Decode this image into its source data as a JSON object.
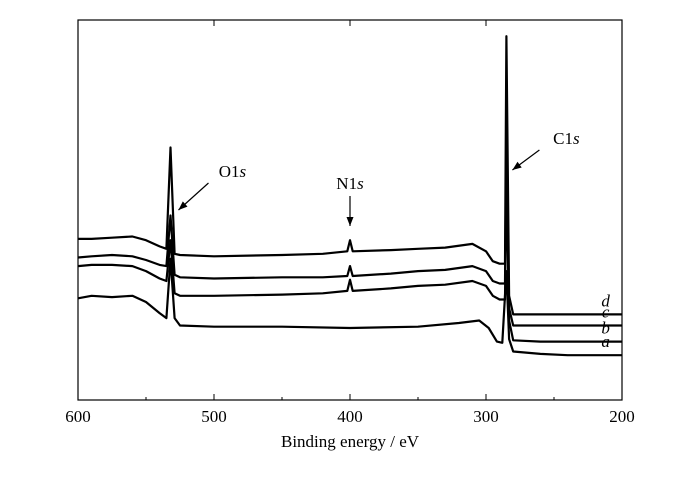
{
  "chart_data": {
    "type": "line",
    "title": "",
    "xlabel": "Binding energy / eV",
    "ylabel": "",
    "xlim": [
      600,
      200
    ],
    "x_reversed": true,
    "x_ticks": [
      "600",
      "500",
      "400",
      "300",
      "200"
    ],
    "y_ticks_labeled": false,
    "grid": false,
    "legend": "none",
    "series": [
      {
        "name": "a",
        "points": [
          [
            600,
            0.58
          ],
          [
            590,
            0.6
          ],
          [
            575,
            0.59
          ],
          [
            560,
            0.6
          ],
          [
            550,
            0.55
          ],
          [
            540,
            0.46
          ],
          [
            535,
            0.42
          ],
          [
            532,
            0.9
          ],
          [
            529,
            0.42
          ],
          [
            525,
            0.36
          ],
          [
            500,
            0.35
          ],
          [
            450,
            0.35
          ],
          [
            400,
            0.34
          ],
          [
            350,
            0.35
          ],
          [
            320,
            0.38
          ],
          [
            305,
            0.4
          ],
          [
            298,
            0.34
          ],
          [
            292,
            0.23
          ],
          [
            288,
            0.22
          ],
          [
            285,
            0.8
          ],
          [
            283,
            0.25
          ],
          [
            280,
            0.15
          ],
          [
            260,
            0.13
          ],
          [
            240,
            0.12
          ],
          [
            200,
            0.12
          ]
        ]
      },
      {
        "name": "b",
        "points": [
          [
            600,
            0.84
          ],
          [
            590,
            0.85
          ],
          [
            575,
            0.85
          ],
          [
            560,
            0.84
          ],
          [
            550,
            0.8
          ],
          [
            540,
            0.74
          ],
          [
            535,
            0.72
          ],
          [
            532,
            1.05
          ],
          [
            529,
            0.62
          ],
          [
            525,
            0.6
          ],
          [
            500,
            0.6
          ],
          [
            450,
            0.61
          ],
          [
            420,
            0.62
          ],
          [
            402,
            0.64
          ],
          [
            400,
            0.73
          ],
          [
            398,
            0.64
          ],
          [
            370,
            0.66
          ],
          [
            350,
            0.68
          ],
          [
            330,
            0.69
          ],
          [
            310,
            0.72
          ],
          [
            300,
            0.68
          ],
          [
            295,
            0.6
          ],
          [
            290,
            0.57
          ],
          [
            286,
            0.57
          ],
          [
            285,
            1.55
          ],
          [
            283,
            0.4
          ],
          [
            280,
            0.24
          ],
          [
            260,
            0.23
          ],
          [
            200,
            0.23
          ]
        ]
      },
      {
        "name": "c",
        "points": [
          [
            600,
            0.91
          ],
          [
            590,
            0.92
          ],
          [
            575,
            0.93
          ],
          [
            560,
            0.92
          ],
          [
            550,
            0.89
          ],
          [
            540,
            0.85
          ],
          [
            535,
            0.84
          ],
          [
            532,
            1.25
          ],
          [
            529,
            0.77
          ],
          [
            525,
            0.75
          ],
          [
            500,
            0.74
          ],
          [
            450,
            0.75
          ],
          [
            420,
            0.75
          ],
          [
            402,
            0.76
          ],
          [
            400,
            0.84
          ],
          [
            398,
            0.76
          ],
          [
            370,
            0.78
          ],
          [
            350,
            0.8
          ],
          [
            330,
            0.81
          ],
          [
            310,
            0.84
          ],
          [
            300,
            0.8
          ],
          [
            295,
            0.72
          ],
          [
            290,
            0.7
          ],
          [
            286,
            0.7
          ],
          [
            285,
            2.0
          ],
          [
            283,
            0.5
          ],
          [
            280,
            0.36
          ],
          [
            260,
            0.36
          ],
          [
            200,
            0.36
          ]
        ]
      },
      {
        "name": "d",
        "points": [
          [
            600,
            1.06
          ],
          [
            590,
            1.06
          ],
          [
            575,
            1.07
          ],
          [
            560,
            1.08
          ],
          [
            550,
            1.05
          ],
          [
            540,
            1.0
          ],
          [
            535,
            0.98
          ],
          [
            532,
            1.8
          ],
          [
            529,
            0.94
          ],
          [
            525,
            0.93
          ],
          [
            500,
            0.92
          ],
          [
            450,
            0.93
          ],
          [
            420,
            0.94
          ],
          [
            402,
            0.96
          ],
          [
            400,
            1.05
          ],
          [
            398,
            0.96
          ],
          [
            370,
            0.97
          ],
          [
            350,
            0.98
          ],
          [
            330,
            0.99
          ],
          [
            310,
            1.02
          ],
          [
            300,
            0.96
          ],
          [
            295,
            0.88
          ],
          [
            290,
            0.86
          ],
          [
            286,
            0.86
          ],
          [
            285,
            2.7
          ],
          [
            283,
            0.6
          ],
          [
            280,
            0.45
          ],
          [
            260,
            0.45
          ],
          [
            200,
            0.45
          ]
        ]
      }
    ],
    "annotations": [
      {
        "text": "O1",
        "text_italic": "s",
        "x": 532
      },
      {
        "text": "N1",
        "text_italic": "s",
        "x": 400
      },
      {
        "text": "C1",
        "text_italic": "s",
        "x": 285
      }
    ]
  }
}
